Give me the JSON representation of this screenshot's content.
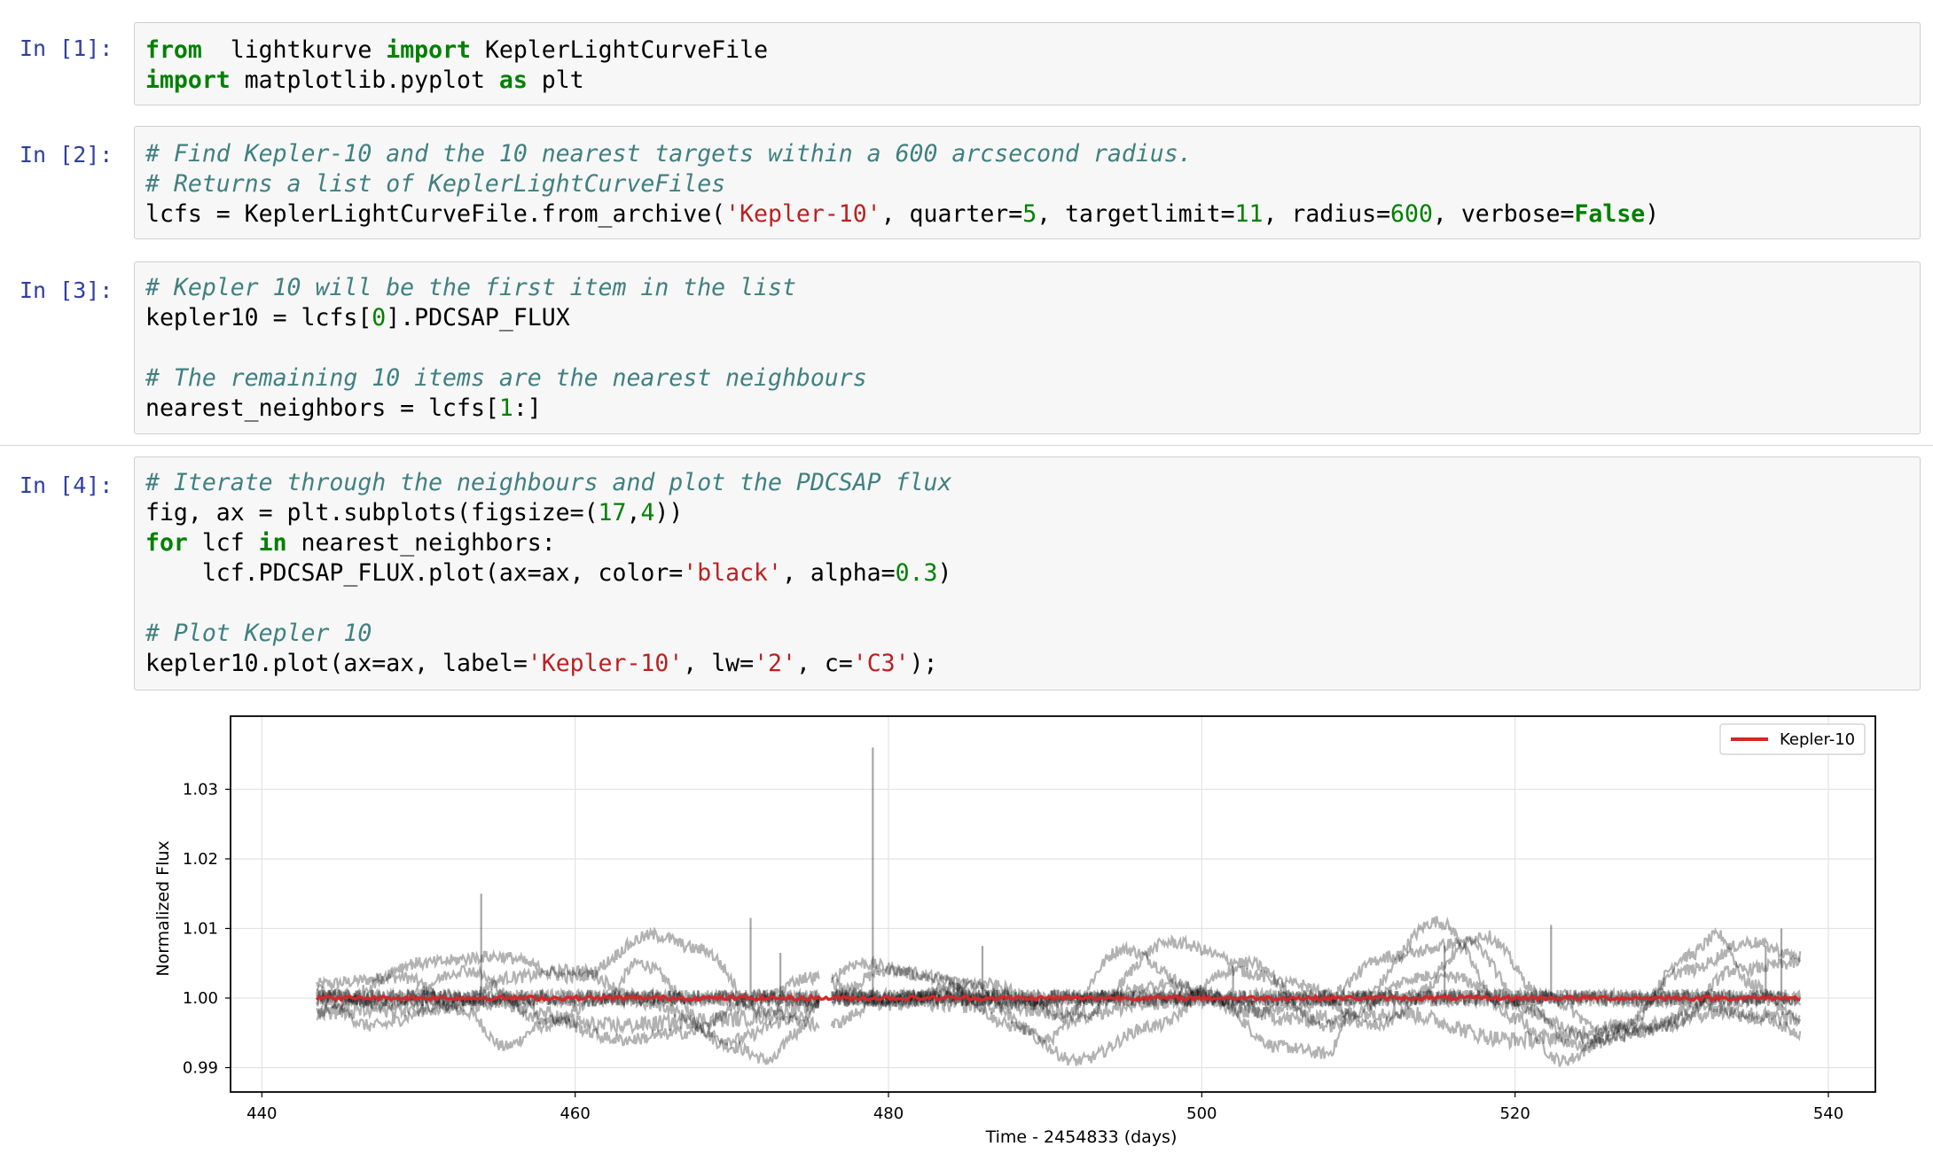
{
  "cells": [
    {
      "prompt": "In [1]:",
      "lines": [
        [
          [
            "kw",
            "from"
          ],
          [
            "",
            "  lightkurve "
          ],
          [
            "kw",
            "import"
          ],
          [
            "",
            " KeplerLightCurveFile"
          ]
        ],
        [
          [
            "kw",
            "import"
          ],
          [
            "",
            " matplotlib.pyplot "
          ],
          [
            "kw",
            "as"
          ],
          [
            "",
            " plt"
          ]
        ]
      ]
    },
    {
      "prompt": "In [2]:",
      "lines": [
        [
          [
            "cm",
            "# Find Kepler-10 and the 10 nearest targets within a 600 arcsecond radius."
          ]
        ],
        [
          [
            "cm",
            "# Returns a list of KeplerLightCurveFiles"
          ]
        ],
        [
          [
            "",
            "lcfs = KeplerLightCurveFile.from_archive("
          ],
          [
            "st",
            "'Kepler-10'"
          ],
          [
            "",
            ", quarter="
          ],
          [
            "nm",
            "5"
          ],
          [
            "",
            ", targetlimit="
          ],
          [
            "nm",
            "11"
          ],
          [
            "",
            ", radius="
          ],
          [
            "nm",
            "600"
          ],
          [
            "",
            ", verbose="
          ],
          [
            "kw",
            "False"
          ],
          [
            "",
            ")"
          ]
        ]
      ]
    },
    {
      "prompt": "In [3]:",
      "lines": [
        [
          [
            "cm",
            "# Kepler 10 will be the first item in the list"
          ]
        ],
        [
          [
            "",
            "kepler10 = lcfs["
          ],
          [
            "nm",
            "0"
          ],
          [
            "",
            "].PDCSAP_FLUX"
          ]
        ],
        [
          [
            "",
            ""
          ]
        ],
        [
          [
            "cm",
            "# The remaining 10 items are the nearest neighbours"
          ]
        ],
        [
          [
            "",
            "nearest_neighbors = lcfs["
          ],
          [
            "nm",
            "1"
          ],
          [
            "",
            ":]"
          ]
        ]
      ]
    },
    {
      "prompt": "In [4]:",
      "lines": [
        [
          [
            "cm",
            "# Iterate through the neighbours and plot the PDCSAP flux"
          ]
        ],
        [
          [
            "",
            "fig, ax = plt.subplots(figsize=("
          ],
          [
            "nm",
            "17"
          ],
          [
            "",
            ","
          ],
          [
            "nm",
            "4"
          ],
          [
            "",
            "))"
          ]
        ],
        [
          [
            "kw",
            "for"
          ],
          [
            "",
            " lcf "
          ],
          [
            "kw",
            "in"
          ],
          [
            "",
            " nearest_neighbors:"
          ]
        ],
        [
          [
            "",
            "    lcf.PDCSAP_FLUX.plot(ax=ax, color="
          ],
          [
            "st",
            "'black'"
          ],
          [
            "",
            ", alpha="
          ],
          [
            "nm",
            "0.3"
          ],
          [
            "",
            ")"
          ]
        ],
        [
          [
            "",
            ""
          ]
        ],
        [
          [
            "cm",
            "# Plot Kepler 10"
          ]
        ],
        [
          [
            "",
            "kepler10.plot(ax=ax, label="
          ],
          [
            "st",
            "'Kepler-10'"
          ],
          [
            "",
            ", lw="
          ],
          [
            "st",
            "'2'"
          ],
          [
            "",
            ", c="
          ],
          [
            "st",
            "'C3'"
          ],
          [
            "",
            ");"
          ]
        ]
      ]
    }
  ],
  "colors": {
    "prompt": "#303f9f",
    "keyword": "#008000",
    "comment": "#408080",
    "string": "#ba2121",
    "number": "#008000",
    "kepler_line": "#d62728",
    "neighbor_line": "#000000"
  },
  "chart_data": {
    "type": "line",
    "xlabel": "Time - 2454833 (days)",
    "ylabel": "Normalized Flux",
    "xlim": [
      438,
      543
    ],
    "ylim": [
      0.9865,
      1.0405
    ],
    "xticks": [
      440,
      460,
      480,
      500,
      520,
      540
    ],
    "xtick_labels": [
      "440",
      "460",
      "480",
      "500",
      "520",
      "540"
    ],
    "yticks": [
      0.99,
      1.0,
      1.01,
      1.02,
      1.03
    ],
    "ytick_labels": [
      "0.99",
      "1.00",
      "1.01",
      "1.02",
      "1.03"
    ],
    "grid": true,
    "legend": "top-right",
    "x_range": [
      443.5,
      538.2
    ],
    "series": [
      {
        "name": "Kepler-10",
        "role": "highlight",
        "x": [
          443.5,
          538.2
        ],
        "y": [
          1.0,
          1.0
        ]
      },
      {
        "role": "neighbor",
        "x": [
          443.5,
          449,
          453,
          455.5,
          458,
          462,
          464,
          470,
          472.5,
          474,
          476,
          480,
          485,
          490,
          495,
          500,
          505,
          508,
          510,
          515,
          520,
          523,
          527,
          531,
          533,
          535,
          538.2
        ],
        "y": [
          1.002,
          1.003,
          0.998,
          0.993,
          0.996,
          1.0,
          1.005,
          0.993,
          0.991,
          0.995,
          1.0,
          1.004,
          1.002,
          0.994,
          1.007,
          1.001,
          0.993,
          0.992,
          1.0,
          1.011,
          0.997,
          0.991,
          0.996,
          1.006,
          1.009,
          1.002,
          0.997
        ]
      },
      {
        "role": "neighbor",
        "x": [
          443.5,
          447,
          452,
          456,
          460,
          465,
          470,
          474,
          478,
          483,
          488,
          492,
          497,
          502,
          506,
          511,
          516,
          520,
          525,
          530,
          534,
          538.2
        ],
        "y": [
          1.0,
          0.996,
          0.999,
          1.003,
          1.004,
          0.999,
          0.994,
          0.997,
          1.005,
          1.003,
          0.996,
          0.991,
          0.996,
          1.004,
          1.002,
          0.996,
          1.003,
          0.999,
          0.994,
          0.996,
          1.004,
          1.005
        ]
      },
      {
        "role": "neighbor",
        "x": [
          443.5,
          450,
          455,
          460,
          465,
          468,
          472,
          476,
          480,
          486,
          492,
          498,
          503,
          508,
          514,
          518,
          522,
          526,
          531,
          535,
          538.2
        ],
        "y": [
          0.998,
          1.005,
          1.006,
          1.003,
          1.009,
          1.007,
          0.998,
          0.996,
          1.0,
          1.002,
          0.997,
          1.008,
          1.005,
          0.996,
          1.003,
          1.009,
          1.0,
          0.995,
          1.004,
          1.008,
          1.006
        ]
      },
      {
        "role": "neighbor",
        "x": [
          443.5,
          448,
          453,
          458,
          463,
          467,
          471,
          475,
          480,
          484,
          489,
          493,
          498,
          503,
          507,
          512,
          517,
          521,
          524,
          528,
          532,
          536,
          538.2
        ],
        "y": [
          1.001,
          0.999,
          1.004,
          0.997,
          0.994,
          0.995,
          0.999,
          1.003,
          0.999,
          1.001,
          0.999,
          1.0,
          1.002,
          0.998,
          0.999,
          1.006,
          1.008,
          0.998,
          0.993,
          0.995,
          0.999,
          0.997,
          0.995
        ]
      },
      {
        "role": "neighbor",
        "x": [
          443.5,
          455,
          462,
          470,
          478,
          485,
          492,
          500,
          506,
          512,
          520,
          528,
          533,
          538.2
        ],
        "y": [
          0.998,
          0.999,
          0.996,
          0.997,
          1.0,
          0.999,
          0.998,
          1.0,
          0.997,
          0.998,
          0.994,
          0.996,
          0.998,
          0.997
        ]
      },
      {
        "role": "neighbor",
        "x": [
          443.5,
          455,
          466,
          478,
          490,
          502,
          514,
          526,
          538.2
        ],
        "y": [
          1.0,
          1.0,
          1.0,
          1.0,
          1.0,
          1.0,
          1.0,
          1.0,
          1.0
        ]
      },
      {
        "role": "neighbor",
        "x": [
          443.5,
          455,
          466,
          478,
          490,
          502,
          514,
          526,
          538.2
        ],
        "y": [
          1.0,
          1.0,
          1.0,
          1.0,
          1.0,
          1.0,
          1.0,
          1.0,
          1.0
        ]
      },
      {
        "role": "neighbor",
        "x": [
          443.5,
          455,
          466,
          478,
          490,
          502,
          514,
          526,
          538.2
        ],
        "y": [
          1.0,
          1.0,
          1.0,
          1.0,
          1.0,
          1.0,
          1.0,
          1.0,
          1.0
        ]
      }
    ],
    "spikes": [
      {
        "x": 454.0,
        "y": 1.015
      },
      {
        "x": 471.2,
        "y": 1.0115
      },
      {
        "x": 479.0,
        "y": 1.036
      },
      {
        "x": 473.1,
        "y": 1.0065
      },
      {
        "x": 486.0,
        "y": 1.0075
      },
      {
        "x": 502.0,
        "y": 1.0045
      },
      {
        "x": 515.5,
        "y": 1.0075
      },
      {
        "x": 522.3,
        "y": 1.0105
      },
      {
        "x": 536.0,
        "y": 1.0075
      },
      {
        "x": 537.0,
        "y": 1.01
      }
    ]
  }
}
